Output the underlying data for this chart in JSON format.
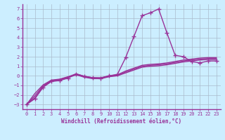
{
  "xlabel": "Windchill (Refroidissement éolien,°C)",
  "background_color": "#cceeff",
  "grid_color": "#aabbcc",
  "line_color": "#993399",
  "xlim": [
    -0.5,
    23.5
  ],
  "ylim": [
    -3.5,
    7.5
  ],
  "xtick_vals": [
    0,
    1,
    2,
    3,
    4,
    5,
    6,
    7,
    8,
    9,
    10,
    11,
    12,
    13,
    14,
    15,
    16,
    17,
    18,
    19,
    20,
    21,
    22,
    23
  ],
  "ytick_vals": [
    -3,
    -2,
    -1,
    0,
    1,
    2,
    3,
    4,
    5,
    6,
    7
  ],
  "series": [
    {
      "x": [
        0,
        1,
        2,
        3,
        4,
        5,
        6,
        7,
        8,
        9,
        10,
        11,
        12,
        13,
        14,
        15,
        16,
        17,
        18,
        19,
        20,
        21,
        22,
        23
      ],
      "y": [
        -3.0,
        -2.4,
        -1.2,
        -0.6,
        -0.5,
        -0.25,
        0.2,
        -0.05,
        -0.2,
        -0.25,
        0.0,
        0.15,
        1.9,
        4.1,
        6.3,
        6.6,
        7.0,
        4.5,
        2.15,
        2.0,
        1.5,
        1.35,
        1.55,
        1.55
      ],
      "marker": "+",
      "markersize": 4,
      "linewidth": 1.0,
      "has_marker": true
    },
    {
      "x": [
        0,
        1,
        2,
        3,
        4,
        5,
        6,
        7,
        8,
        9,
        10,
        11,
        12,
        13,
        14,
        15,
        16,
        17,
        18,
        19,
        20,
        21,
        22,
        23
      ],
      "y": [
        -3.0,
        -2.3,
        -1.15,
        -0.55,
        -0.45,
        -0.2,
        0.1,
        -0.15,
        -0.3,
        -0.3,
        -0.1,
        0.0,
        0.3,
        0.6,
        0.9,
        1.0,
        1.05,
        1.15,
        1.3,
        1.45,
        1.55,
        1.65,
        1.7,
        1.7
      ],
      "marker": "",
      "markersize": 0,
      "linewidth": 1.0,
      "has_marker": false
    },
    {
      "x": [
        0,
        1,
        2,
        3,
        4,
        5,
        6,
        7,
        8,
        9,
        10,
        11,
        12,
        13,
        14,
        15,
        16,
        17,
        18,
        19,
        20,
        21,
        22,
        23
      ],
      "y": [
        -3.0,
        -2.1,
        -1.05,
        -0.5,
        -0.4,
        -0.15,
        0.15,
        -0.1,
        -0.25,
        -0.25,
        -0.05,
        0.05,
        0.4,
        0.7,
        1.0,
        1.1,
        1.15,
        1.25,
        1.4,
        1.55,
        1.65,
        1.75,
        1.8,
        1.8
      ],
      "marker": "",
      "markersize": 0,
      "linewidth": 1.0,
      "has_marker": false
    },
    {
      "x": [
        0,
        1,
        2,
        3,
        4,
        5,
        6,
        7,
        8,
        9,
        10,
        11,
        12,
        13,
        14,
        15,
        16,
        17,
        18,
        19,
        20,
        21,
        22,
        23
      ],
      "y": [
        -3.0,
        -1.85,
        -0.95,
        -0.45,
        -0.35,
        -0.1,
        0.2,
        -0.05,
        -0.2,
        -0.2,
        0.0,
        0.1,
        0.5,
        0.8,
        1.1,
        1.2,
        1.25,
        1.35,
        1.5,
        1.65,
        1.75,
        1.85,
        1.9,
        1.9
      ],
      "marker": "",
      "markersize": 0,
      "linewidth": 1.0,
      "has_marker": false
    }
  ],
  "xlabel_fontsize": 5.5,
  "tick_fontsize": 5.0,
  "border_color": "#993399"
}
